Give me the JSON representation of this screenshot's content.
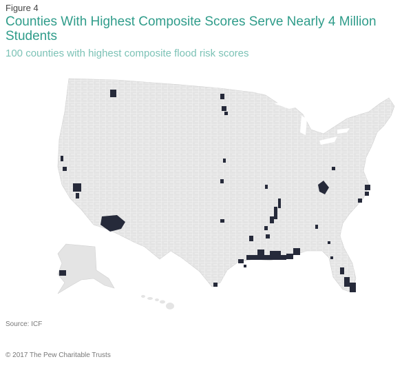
{
  "header": {
    "figure_label": "Figure 4",
    "title": "Counties With Highest Composite Scores Serve Nearly 4 Million Students",
    "subtitle": "100 counties with highest composite flood risk scores"
  },
  "colors": {
    "land": "#e4e4e4",
    "border": "#ffffff",
    "highlight": "#262a3a",
    "title": "#2f9c8a",
    "subtitle": "#7cc2b6"
  },
  "map": {
    "regions": [
      "contiguous-us",
      "alaska",
      "hawaii"
    ],
    "highlighted_area_groups": [
      "northwest",
      "montana",
      "north-dakota",
      "california",
      "nevada",
      "arizona",
      "alaska",
      "central-plains",
      "mississippi-valley",
      "gulf-coast",
      "appalachia",
      "carolina-coast",
      "florida"
    ]
  },
  "footer": {
    "source": "Source: ICF",
    "copyright": "© 2017 The Pew Charitable Trusts"
  }
}
